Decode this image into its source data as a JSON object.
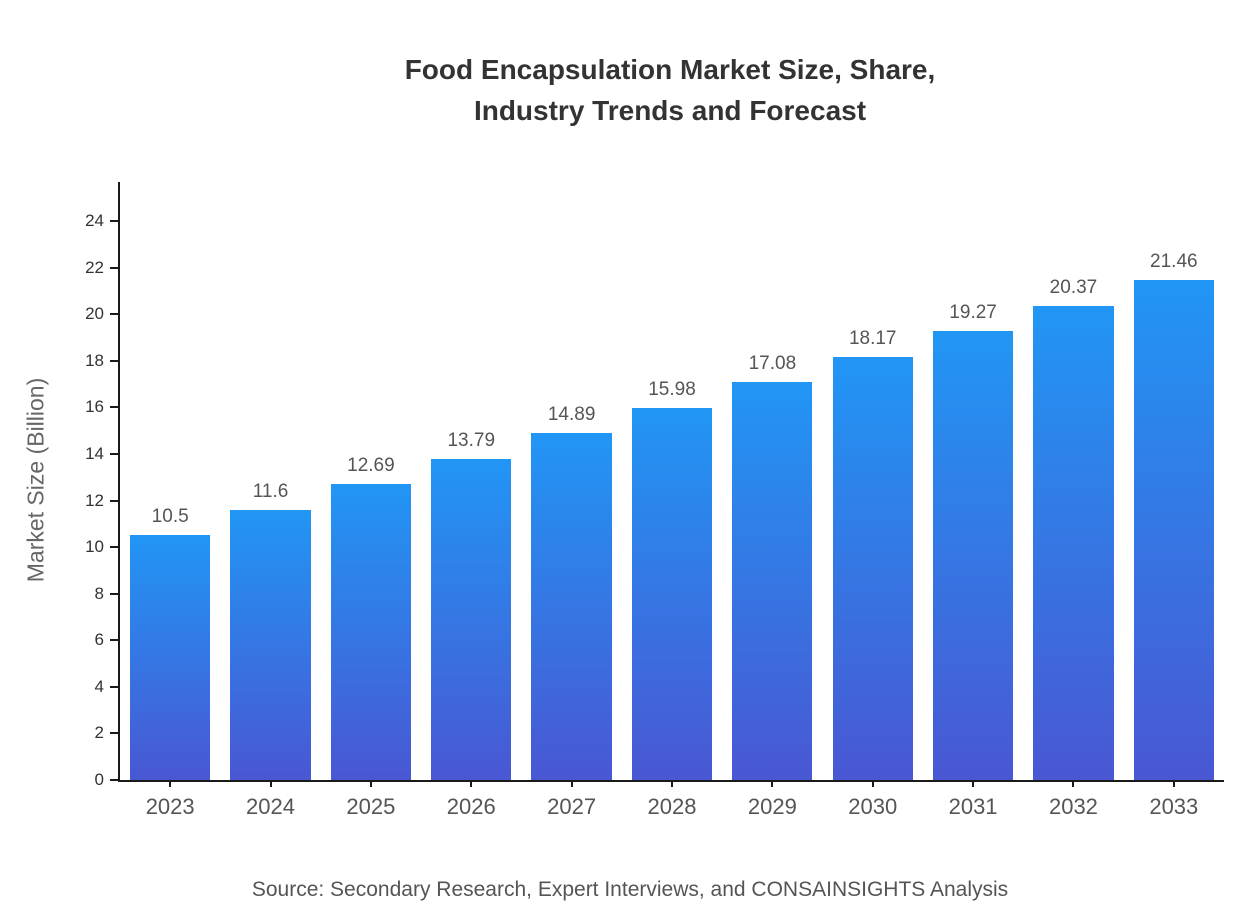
{
  "chart_data": {
    "type": "bar",
    "title": "Food Encapsulation Market Size, Share,\nIndustry Trends and Forecast",
    "categories": [
      "2023",
      "2024",
      "2025",
      "2026",
      "2027",
      "2028",
      "2029",
      "2030",
      "2031",
      "2032",
      "2033"
    ],
    "values": [
      10.5,
      11.6,
      12.69,
      13.79,
      14.89,
      15.98,
      17.08,
      18.17,
      19.27,
      20.37,
      21.46
    ],
    "value_labels": [
      "10.5",
      "11.6",
      "12.69",
      "13.79",
      "14.89",
      "15.98",
      "17.08",
      "18.17",
      "19.27",
      "20.37",
      "21.46"
    ],
    "xlabel": "",
    "ylabel": "Market Size (Billion)",
    "ylim": [
      0,
      24
    ],
    "yticks": [
      0,
      2,
      4,
      6,
      8,
      10,
      12,
      14,
      16,
      18,
      20,
      22,
      24
    ],
    "grid": false,
    "legend": "none",
    "bar_gradient_top": "#2196f5",
    "bar_gradient_bottom": "#4957d2"
  },
  "source": "Source: Secondary Research, Expert Interviews, and CONSAINSIGHTS Analysis"
}
